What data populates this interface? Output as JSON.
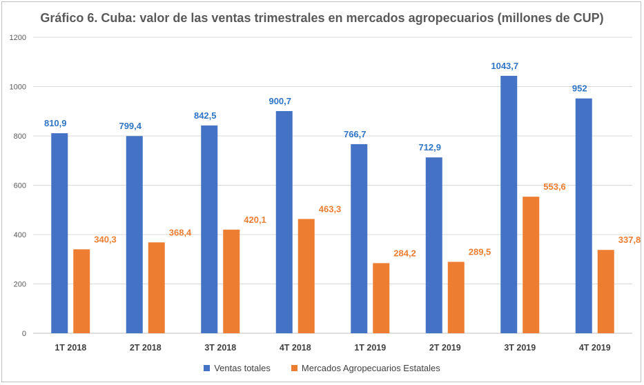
{
  "chart_data": {
    "type": "bar",
    "title": "Gráfico 6. Cuba: valor de las ventas trimestrales en mercados agropecuarios (millones de CUP)",
    "xlabel": "",
    "ylabel": "",
    "ylim": [
      0,
      1200
    ],
    "yticks": [
      "0",
      "200",
      "400",
      "600",
      "800",
      "1000",
      "1200"
    ],
    "grid": true,
    "legend_position": "bottom",
    "categories": [
      "1T 2018",
      "2T 2018",
      "3T 2018",
      "4T 2018",
      "1T 2019",
      "2T 2019",
      "3T 2019",
      "4T 2019"
    ],
    "series": [
      {
        "name": "Ventas totales",
        "color": "#4472c4",
        "label_color": "#2f75c6",
        "values": [
          810.9,
          799.4,
          842.5,
          900.7,
          766.7,
          712.9,
          1043.7,
          952
        ],
        "labels": [
          "810,9",
          "799,4",
          "842,5",
          "900,7",
          "766,7",
          "712,9",
          "1043,7",
          "952"
        ]
      },
      {
        "name": "Mercados Agropecuarios Estatales",
        "color": "#ed7d31",
        "label_color": "#ed7d31",
        "values": [
          340.3,
          368.4,
          420.1,
          463.3,
          284.2,
          289.5,
          553.6,
          337.8
        ],
        "labels": [
          "340,3",
          "368,4",
          "420,1",
          "463,3",
          "284,2",
          "289,5",
          "553,6",
          "337,8"
        ]
      }
    ]
  }
}
